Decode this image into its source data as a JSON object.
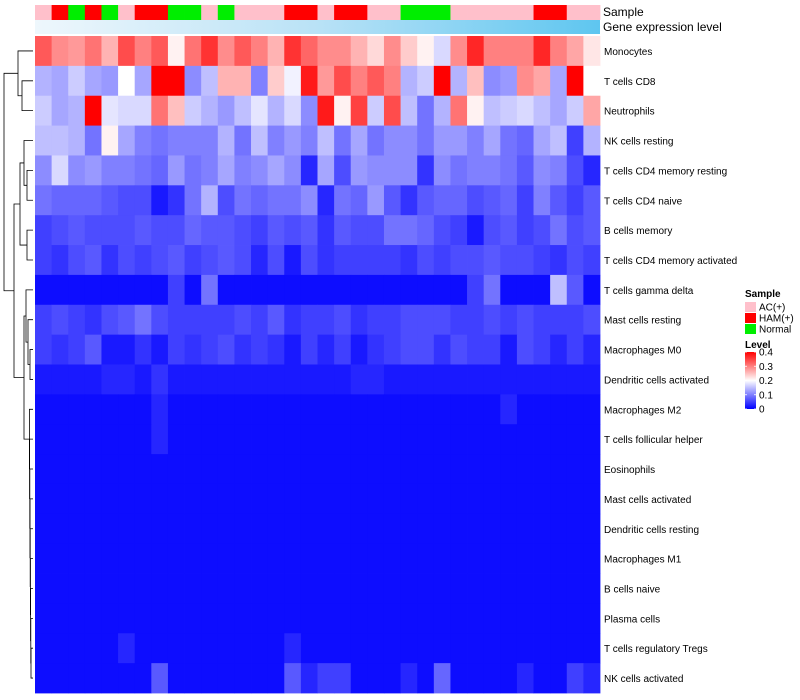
{
  "chart_data": {
    "type": "heatmap",
    "annotation_rows": [
      "Sample",
      "Gene expression level"
    ],
    "sample_groups": [
      "AC(+)",
      "HAM(+)",
      "Normal",
      "HAM(+)",
      "Normal",
      "AC(+)",
      "HAM(+)",
      "HAM(+)",
      "Normal",
      "Normal",
      "AC(+)",
      "Normal",
      "AC(+)",
      "AC(+)",
      "AC(+)",
      "HAM(+)",
      "HAM(+)",
      "AC(+)",
      "HAM(+)",
      "HAM(+)",
      "AC(+)",
      "AC(+)",
      "Normal",
      "Normal",
      "Normal",
      "AC(+)",
      "AC(+)",
      "AC(+)",
      "AC(+)",
      "AC(+)",
      "HAM(+)",
      "HAM(+)",
      "AC(+)",
      "AC(+)"
    ],
    "rows": [
      "Monocytes",
      "T cells CD8",
      "Neutrophils",
      "NK cells resting",
      "T cells CD4 memory resting",
      "T cells CD4 naive",
      "B cells memory",
      "T cells CD4 memory activated",
      "T cells gamma delta",
      "Mast cells resting",
      "Macrophages M0",
      "Dendritic cells activated",
      "Macrophages M2",
      "T cells follicular helper",
      "Eosinophils",
      "Mast cells activated",
      "Dendritic cells resting",
      "Macrophages M1",
      "B cells naive",
      "Plasma cells",
      "T cells regulatory  Tregs",
      "NK cells activated"
    ],
    "values": [
      [
        0.33,
        0.29,
        0.28,
        0.31,
        0.26,
        0.34,
        0.3,
        0.33,
        0.21,
        0.31,
        0.36,
        0.29,
        0.33,
        0.3,
        0.26,
        0.36,
        0.32,
        0.29,
        0.29,
        0.26,
        0.23,
        0.29,
        0.24,
        0.21,
        0.17,
        0.29,
        0.37,
        0.3,
        0.3,
        0.3,
        0.37,
        0.3,
        0.27,
        0.22
      ],
      [
        0.14,
        0.13,
        0.16,
        0.13,
        0.12,
        0.2,
        0.13,
        0.4,
        0.4,
        0.11,
        0.15,
        0.26,
        0.26,
        0.1,
        0.24,
        0.19,
        0.38,
        0.28,
        0.34,
        0.3,
        0.33,
        0.3,
        0.14,
        0.16,
        0.4,
        0.14,
        0.25,
        0.11,
        0.12,
        0.29,
        0.27,
        0.13,
        0.4,
        0.2
      ],
      [
        0.16,
        0.13,
        0.14,
        0.4,
        0.18,
        0.17,
        0.17,
        0.31,
        0.25,
        0.16,
        0.14,
        0.12,
        0.15,
        0.18,
        0.14,
        0.17,
        0.11,
        0.38,
        0.21,
        0.35,
        0.16,
        0.34,
        0.15,
        0.09,
        0.14,
        0.31,
        0.21,
        0.15,
        0.16,
        0.17,
        0.15,
        0.13,
        0.16,
        0.27
      ],
      [
        0.15,
        0.15,
        0.14,
        0.09,
        0.21,
        0.13,
        0.1,
        0.09,
        0.1,
        0.1,
        0.1,
        0.14,
        0.09,
        0.15,
        0.1,
        0.12,
        0.1,
        0.15,
        0.09,
        0.13,
        0.09,
        0.11,
        0.11,
        0.09,
        0.12,
        0.12,
        0.1,
        0.13,
        0.09,
        0.08,
        0.13,
        0.15,
        0.05,
        0.14
      ],
      [
        0.11,
        0.17,
        0.11,
        0.12,
        0.1,
        0.1,
        0.09,
        0.08,
        0.12,
        0.09,
        0.1,
        0.13,
        0.1,
        0.11,
        0.13,
        0.11,
        0.03,
        0.13,
        0.06,
        0.12,
        0.11,
        0.11,
        0.11,
        0.04,
        0.11,
        0.09,
        0.1,
        0.1,
        0.09,
        0.07,
        0.11,
        0.1,
        0.06,
        0.03
      ],
      [
        0.09,
        0.08,
        0.08,
        0.08,
        0.07,
        0.06,
        0.06,
        0.02,
        0.04,
        0.09,
        0.14,
        0.06,
        0.09,
        0.08,
        0.09,
        0.09,
        0.11,
        0.03,
        0.09,
        0.08,
        0.12,
        0.07,
        0.04,
        0.07,
        0.08,
        0.08,
        0.06,
        0.07,
        0.08,
        0.05,
        0.1,
        0.07,
        0.05,
        0.07
      ],
      [
        0.05,
        0.06,
        0.07,
        0.06,
        0.06,
        0.06,
        0.07,
        0.06,
        0.06,
        0.08,
        0.07,
        0.07,
        0.06,
        0.05,
        0.07,
        0.06,
        0.07,
        0.04,
        0.07,
        0.06,
        0.06,
        0.09,
        0.09,
        0.08,
        0.06,
        0.05,
        0.02,
        0.06,
        0.07,
        0.05,
        0.06,
        0.09,
        0.06,
        0.07
      ],
      [
        0.05,
        0.04,
        0.06,
        0.07,
        0.04,
        0.06,
        0.05,
        0.06,
        0.07,
        0.05,
        0.06,
        0.07,
        0.06,
        0.03,
        0.06,
        0.02,
        0.06,
        0.04,
        0.05,
        0.05,
        0.05,
        0.05,
        0.04,
        0.06,
        0.05,
        0.06,
        0.06,
        0.07,
        0.06,
        0.06,
        0.05,
        0.04,
        0.06,
        0.05
      ],
      [
        0.01,
        0.01,
        0.01,
        0.01,
        0.01,
        0.01,
        0.01,
        0.01,
        0.05,
        0.01,
        0.09,
        0.01,
        0.01,
        0.01,
        0.01,
        0.01,
        0.01,
        0.01,
        0.01,
        0.01,
        0.01,
        0.01,
        0.01,
        0.01,
        0.01,
        0.01,
        0.05,
        0.09,
        0.01,
        0.01,
        0.01,
        0.15,
        0.07,
        0.01
      ],
      [
        0.05,
        0.06,
        0.05,
        0.04,
        0.06,
        0.07,
        0.09,
        0.06,
        0.05,
        0.05,
        0.05,
        0.05,
        0.06,
        0.05,
        0.07,
        0.04,
        0.05,
        0.05,
        0.06,
        0.04,
        0.05,
        0.05,
        0.06,
        0.06,
        0.06,
        0.05,
        0.05,
        0.06,
        0.05,
        0.06,
        0.05,
        0.05,
        0.05,
        0.06
      ],
      [
        0.05,
        0.04,
        0.05,
        0.07,
        0.02,
        0.02,
        0.04,
        0.02,
        0.05,
        0.04,
        0.05,
        0.06,
        0.04,
        0.05,
        0.04,
        0.02,
        0.05,
        0.03,
        0.05,
        0.02,
        0.04,
        0.05,
        0.06,
        0.06,
        0.04,
        0.06,
        0.05,
        0.05,
        0.02,
        0.06,
        0.05,
        0.03,
        0.05,
        0.03
      ],
      [
        0.02,
        0.02,
        0.02,
        0.02,
        0.03,
        0.03,
        0.02,
        0.04,
        0.02,
        0.02,
        0.02,
        0.02,
        0.02,
        0.02,
        0.02,
        0.02,
        0.02,
        0.02,
        0.02,
        0.03,
        0.03,
        0.02,
        0.02,
        0.02,
        0.02,
        0.02,
        0.02,
        0.02,
        0.02,
        0.02,
        0.02,
        0.02,
        0.02,
        0.02
      ],
      [
        0.01,
        0.01,
        0.01,
        0.01,
        0.01,
        0.01,
        0.01,
        0.03,
        0.01,
        0.01,
        0.01,
        0.01,
        0.01,
        0.01,
        0.01,
        0.01,
        0.01,
        0.01,
        0.01,
        0.01,
        0.01,
        0.01,
        0.01,
        0.01,
        0.01,
        0.01,
        0.01,
        0.01,
        0.03,
        0.01,
        0.01,
        0.01,
        0.01,
        0.01
      ],
      [
        0.01,
        0.01,
        0.01,
        0.01,
        0.01,
        0.01,
        0.01,
        0.03,
        0.01,
        0.01,
        0.01,
        0.01,
        0.01,
        0.01,
        0.01,
        0.01,
        0.01,
        0.01,
        0.01,
        0.01,
        0.01,
        0.01,
        0.01,
        0.01,
        0.01,
        0.01,
        0.01,
        0.01,
        0.01,
        0.01,
        0.01,
        0.01,
        0.01,
        0.01
      ],
      [
        0.01,
        0.01,
        0.01,
        0.01,
        0.01,
        0.01,
        0.01,
        0.01,
        0.01,
        0.01,
        0.01,
        0.01,
        0.01,
        0.01,
        0.01,
        0.01,
        0.01,
        0.01,
        0.01,
        0.01,
        0.01,
        0.01,
        0.01,
        0.01,
        0.01,
        0.01,
        0.01,
        0.01,
        0.01,
        0.01,
        0.01,
        0.01,
        0.01,
        0.01
      ],
      [
        0.01,
        0.01,
        0.01,
        0.01,
        0.01,
        0.01,
        0.01,
        0.01,
        0.01,
        0.01,
        0.01,
        0.01,
        0.01,
        0.01,
        0.01,
        0.01,
        0.01,
        0.01,
        0.01,
        0.01,
        0.01,
        0.01,
        0.01,
        0.01,
        0.01,
        0.01,
        0.01,
        0.01,
        0.01,
        0.01,
        0.01,
        0.01,
        0.01,
        0.01
      ],
      [
        0.01,
        0.01,
        0.01,
        0.01,
        0.01,
        0.01,
        0.01,
        0.01,
        0.01,
        0.01,
        0.01,
        0.01,
        0.01,
        0.01,
        0.01,
        0.01,
        0.01,
        0.01,
        0.01,
        0.01,
        0.01,
        0.01,
        0.01,
        0.01,
        0.01,
        0.01,
        0.01,
        0.01,
        0.01,
        0.01,
        0.01,
        0.01,
        0.01,
        0.01
      ],
      [
        0.01,
        0.01,
        0.01,
        0.01,
        0.01,
        0.01,
        0.01,
        0.01,
        0.01,
        0.01,
        0.01,
        0.01,
        0.01,
        0.01,
        0.01,
        0.01,
        0.01,
        0.01,
        0.01,
        0.01,
        0.01,
        0.01,
        0.01,
        0.01,
        0.01,
        0.01,
        0.01,
        0.01,
        0.01,
        0.01,
        0.01,
        0.01,
        0.01,
        0.01
      ],
      [
        0.01,
        0.01,
        0.01,
        0.01,
        0.01,
        0.01,
        0.01,
        0.01,
        0.01,
        0.01,
        0.01,
        0.01,
        0.01,
        0.01,
        0.01,
        0.01,
        0.01,
        0.01,
        0.01,
        0.01,
        0.01,
        0.01,
        0.01,
        0.01,
        0.01,
        0.01,
        0.01,
        0.01,
        0.01,
        0.01,
        0.01,
        0.01,
        0.01,
        0.01
      ],
      [
        0.01,
        0.01,
        0.01,
        0.01,
        0.01,
        0.01,
        0.01,
        0.01,
        0.01,
        0.01,
        0.01,
        0.01,
        0.01,
        0.01,
        0.01,
        0.01,
        0.01,
        0.01,
        0.01,
        0.01,
        0.01,
        0.01,
        0.01,
        0.01,
        0.01,
        0.01,
        0.01,
        0.01,
        0.01,
        0.01,
        0.01,
        0.01,
        0.01,
        0.01
      ],
      [
        0.01,
        0.01,
        0.01,
        0.01,
        0.01,
        0.03,
        0.01,
        0.01,
        0.01,
        0.01,
        0.01,
        0.01,
        0.01,
        0.01,
        0.01,
        0.03,
        0.01,
        0.01,
        0.01,
        0.01,
        0.01,
        0.01,
        0.01,
        0.01,
        0.01,
        0.01,
        0.01,
        0.01,
        0.01,
        0.01,
        0.01,
        0.01,
        0.01,
        0.01
      ],
      [
        0.01,
        0.01,
        0.01,
        0.01,
        0.01,
        0.01,
        0.01,
        0.07,
        0.01,
        0.01,
        0.01,
        0.01,
        0.01,
        0.01,
        0.01,
        0.07,
        0.03,
        0.05,
        0.05,
        0.01,
        0.01,
        0.01,
        0.03,
        0.01,
        0.08,
        0.01,
        0.01,
        0.01,
        0.01,
        0.03,
        0.01,
        0.01,
        0.05,
        0.03
      ]
    ],
    "legend_sample": {
      "title": "Sample",
      "items": [
        {
          "label": "AC(+)",
          "color": "#ffc0cb"
        },
        {
          "label": "HAM(+)",
          "color": "#ff0000"
        },
        {
          "label": "Normal",
          "color": "#00ee00"
        }
      ]
    },
    "legend_level": {
      "title": "Level",
      "ticks": [
        {
          "label": "0.4",
          "value": 0.4
        },
        {
          "label": "0.3",
          "value": 0.3
        },
        {
          "label": "0.2",
          "value": 0.2
        },
        {
          "label": "0.1",
          "value": 0.1
        },
        {
          "label": "0",
          "value": 0
        }
      ]
    },
    "color_scale": {
      "min": 0,
      "mid": 0.2,
      "max": 0.4,
      "low": "#0000ff",
      "middle": "#ffffff",
      "high": "#ff0000"
    },
    "gene_expression_color": "#5ec6f0"
  }
}
